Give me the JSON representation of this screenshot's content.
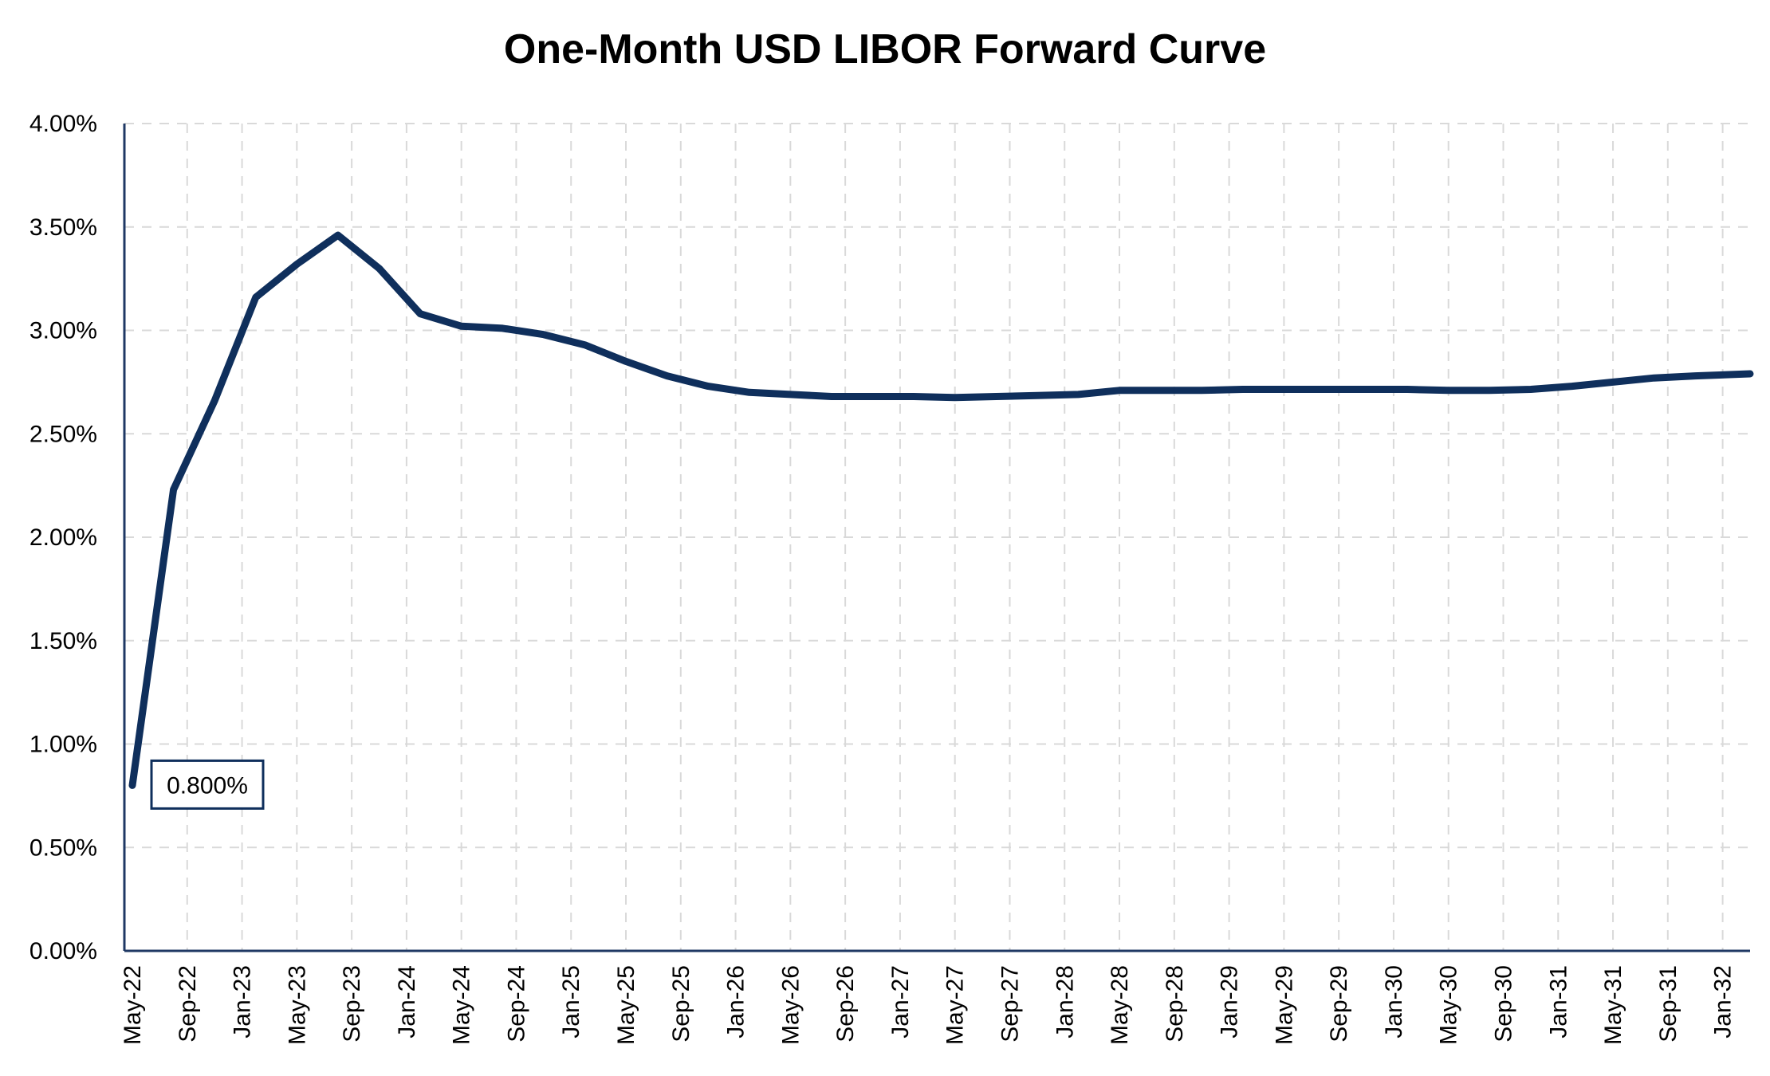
{
  "chart_data": {
    "type": "line",
    "title": "One-Month USD LIBOR Forward Curve",
    "xlabel": "",
    "ylabel": "",
    "ylim": [
      0,
      4.0
    ],
    "yticks": [
      "0.00%",
      "0.50%",
      "1.00%",
      "1.50%",
      "2.00%",
      "2.50%",
      "3.00%",
      "3.50%",
      "4.00%"
    ],
    "x_tick_labels": [
      "May-22",
      "Sep-22",
      "Jan-23",
      "May-23",
      "Sep-23",
      "Jan-24",
      "May-24",
      "Sep-24",
      "Jan-25",
      "May-25",
      "Sep-25",
      "Jan-26",
      "May-26",
      "Sep-26",
      "Jan-27",
      "May-27",
      "Sep-27",
      "Jan-28",
      "May-28",
      "Sep-28",
      "Jan-29",
      "May-29",
      "Sep-29",
      "Jan-30",
      "May-30",
      "Sep-30",
      "Jan-31",
      "May-31",
      "Sep-31",
      "Jan-32"
    ],
    "x_range": [
      "2022-05",
      "2032-03"
    ],
    "grid": true,
    "legend": "none",
    "color": "#0f2f5c",
    "series": [
      {
        "points": [
          {
            "x": "2022-05",
            "y": 0.8
          },
          {
            "x": "2022-08",
            "y": 2.23
          },
          {
            "x": "2022-11",
            "y": 2.66
          },
          {
            "x": "2023-02",
            "y": 3.16
          },
          {
            "x": "2023-05",
            "y": 3.32
          },
          {
            "x": "2023-08",
            "y": 3.46
          },
          {
            "x": "2023-11",
            "y": 3.3
          },
          {
            "x": "2024-02",
            "y": 3.08
          },
          {
            "x": "2024-05",
            "y": 3.02
          },
          {
            "x": "2024-08",
            "y": 3.01
          },
          {
            "x": "2024-11",
            "y": 2.98
          },
          {
            "x": "2025-02",
            "y": 2.93
          },
          {
            "x": "2025-05",
            "y": 2.85
          },
          {
            "x": "2025-08",
            "y": 2.78
          },
          {
            "x": "2025-11",
            "y": 2.73
          },
          {
            "x": "2026-02",
            "y": 2.7
          },
          {
            "x": "2026-05",
            "y": 2.69
          },
          {
            "x": "2026-08",
            "y": 2.68
          },
          {
            "x": "2026-11",
            "y": 2.68
          },
          {
            "x": "2027-02",
            "y": 2.68
          },
          {
            "x": "2027-05",
            "y": 2.675
          },
          {
            "x": "2027-08",
            "y": 2.68
          },
          {
            "x": "2027-11",
            "y": 2.685
          },
          {
            "x": "2028-02",
            "y": 2.69
          },
          {
            "x": "2028-05",
            "y": 2.71
          },
          {
            "x": "2028-08",
            "y": 2.71
          },
          {
            "x": "2028-11",
            "y": 2.71
          },
          {
            "x": "2029-02",
            "y": 2.715
          },
          {
            "x": "2029-05",
            "y": 2.715
          },
          {
            "x": "2029-08",
            "y": 2.715
          },
          {
            "x": "2029-11",
            "y": 2.715
          },
          {
            "x": "2030-02",
            "y": 2.715
          },
          {
            "x": "2030-05",
            "y": 2.71
          },
          {
            "x": "2030-08",
            "y": 2.71
          },
          {
            "x": "2030-11",
            "y": 2.715
          },
          {
            "x": "2031-02",
            "y": 2.73
          },
          {
            "x": "2031-05",
            "y": 2.75
          },
          {
            "x": "2031-08",
            "y": 2.77
          },
          {
            "x": "2031-11",
            "y": 2.78
          },
          {
            "x": "2032-03",
            "y": 2.79
          }
        ]
      }
    ],
    "annotations": [
      {
        "text": "0.800%",
        "x": "2022-05",
        "y": 0.8
      }
    ]
  }
}
